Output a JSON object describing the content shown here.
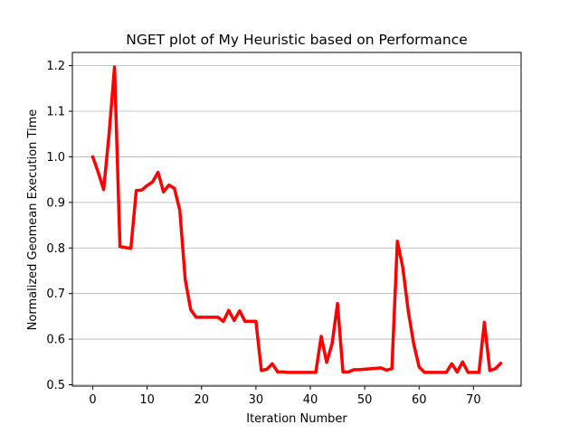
{
  "chart_data": {
    "type": "line",
    "title": "NGET plot of My Heuristic based on Performance",
    "xlabel": "Iteration Number",
    "ylabel": "Normalized Geomean Execution Time",
    "xlim": [
      -3.75,
      78.75
    ],
    "ylim": [
      0.497,
      1.229
    ],
    "xticks": [
      0,
      10,
      20,
      30,
      40,
      50,
      60,
      70
    ],
    "yticks": [
      0.5,
      0.6,
      0.7,
      0.8,
      0.9,
      1.0,
      1.1,
      1.2
    ],
    "ytick_labels": [
      "0.5",
      "0.6",
      "0.7",
      "0.8",
      "0.9",
      "1.0",
      "1.1",
      "1.2"
    ],
    "grid": "y",
    "line_color": "#ff0000",
    "x": [
      0,
      1,
      2,
      3,
      4,
      5,
      6,
      7,
      8,
      9,
      10,
      11,
      12,
      13,
      14,
      15,
      16,
      17,
      18,
      19,
      20,
      21,
      22,
      23,
      24,
      25,
      26,
      27,
      28,
      29,
      30,
      31,
      32,
      33,
      34,
      35,
      36,
      37,
      38,
      39,
      40,
      41,
      42,
      43,
      44,
      45,
      46,
      47,
      48,
      49,
      50,
      51,
      52,
      53,
      54,
      55,
      56,
      57,
      58,
      59,
      60,
      61,
      62,
      63,
      64,
      65,
      66,
      67,
      68,
      69,
      70,
      71,
      72,
      73,
      74,
      75
    ],
    "y": [
      1.0,
      0.966,
      0.928,
      1.05,
      1.197,
      0.803,
      0.801,
      0.799,
      0.926,
      0.927,
      0.937,
      0.945,
      0.966,
      0.923,
      0.938,
      0.931,
      0.883,
      0.731,
      0.665,
      0.648,
      0.648,
      0.648,
      0.648,
      0.648,
      0.639,
      0.663,
      0.641,
      0.662,
      0.639,
      0.639,
      0.639,
      0.531,
      0.534,
      0.546,
      0.528,
      0.528,
      0.527,
      0.527,
      0.527,
      0.527,
      0.527,
      0.527,
      0.606,
      0.549,
      0.59,
      0.678,
      0.528,
      0.528,
      0.533,
      0.533,
      0.534,
      0.535,
      0.536,
      0.537,
      0.532,
      0.535,
      0.815,
      0.757,
      0.662,
      0.59,
      0.539,
      0.527,
      0.527,
      0.527,
      0.527,
      0.527,
      0.546,
      0.528,
      0.55,
      0.527,
      0.527,
      0.527,
      0.637,
      0.531,
      0.535,
      0.547
    ]
  }
}
